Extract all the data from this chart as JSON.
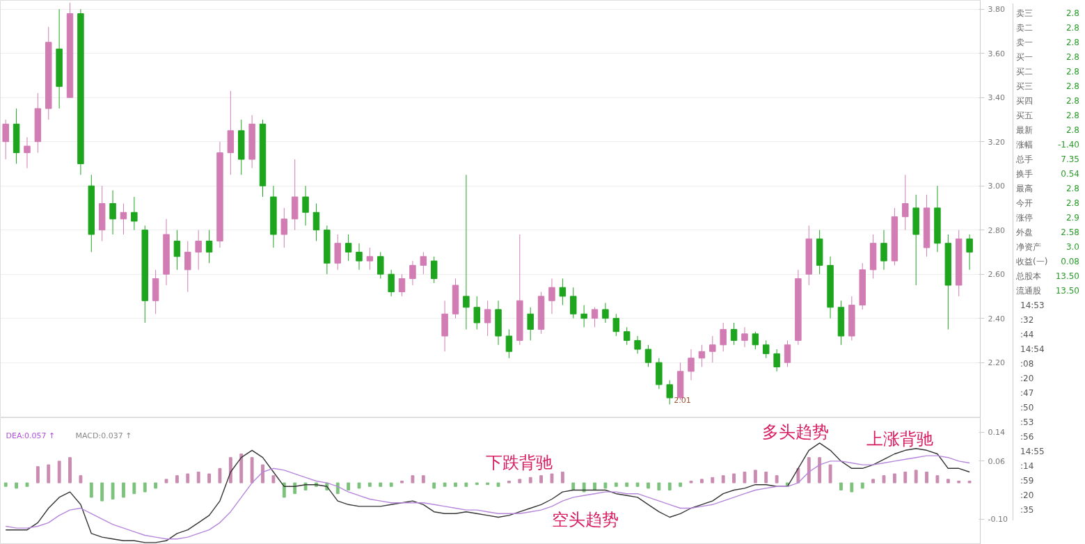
{
  "chart_data": [
    {
      "type": "candlestick",
      "categories": [
        null,
        null,
        null,
        null,
        null,
        null,
        null,
        null,
        null,
        null,
        null,
        null,
        null,
        null,
        null,
        null,
        null,
        null,
        null,
        null,
        null,
        null,
        null,
        null,
        null,
        null,
        null,
        null,
        null,
        null,
        null,
        null,
        null,
        null,
        null,
        null,
        null,
        null,
        null,
        null,
        null,
        null,
        null,
        null,
        null,
        null,
        null,
        null,
        null,
        null,
        null,
        null,
        null,
        null,
        null,
        null,
        null,
        null,
        null,
        null,
        null,
        null,
        null,
        null,
        null,
        null,
        null,
        null,
        null,
        null,
        null,
        null,
        null,
        null,
        null,
        null,
        null,
        null,
        null,
        null,
        null,
        null,
        null,
        null,
        null,
        null,
        null,
        null,
        null,
        null,
        null
      ],
      "ohlc": [
        [
          3.2,
          3.3,
          3.12,
          3.28
        ],
        [
          3.28,
          3.35,
          3.1,
          3.15
        ],
        [
          3.15,
          3.22,
          3.08,
          3.18
        ],
        [
          3.2,
          3.42,
          3.15,
          3.35
        ],
        [
          3.35,
          3.72,
          3.3,
          3.65
        ],
        [
          3.62,
          3.8,
          3.35,
          3.45
        ],
        [
          3.4,
          3.83,
          3.4,
          3.78
        ],
        [
          3.78,
          3.8,
          3.05,
          3.1
        ],
        [
          3.0,
          3.05,
          2.7,
          2.78
        ],
        [
          2.8,
          3.0,
          2.75,
          2.92
        ],
        [
          2.92,
          2.98,
          2.78,
          2.85
        ],
        [
          2.85,
          2.92,
          2.78,
          2.88
        ],
        [
          2.88,
          2.95,
          2.8,
          2.84
        ],
        [
          2.8,
          2.82,
          2.38,
          2.48
        ],
        [
          2.48,
          2.62,
          2.42,
          2.58
        ],
        [
          2.6,
          2.85,
          2.55,
          2.78
        ],
        [
          2.75,
          2.8,
          2.62,
          2.68
        ],
        [
          2.62,
          2.75,
          2.52,
          2.7
        ],
        [
          2.7,
          2.8,
          2.62,
          2.75
        ],
        [
          2.75,
          2.8,
          2.65,
          2.7
        ],
        [
          2.75,
          3.2,
          2.72,
          3.15
        ],
        [
          3.15,
          3.43,
          3.05,
          3.25
        ],
        [
          3.25,
          3.3,
          3.05,
          3.12
        ],
        [
          3.12,
          3.32,
          3.08,
          3.28
        ],
        [
          3.28,
          3.3,
          2.95,
          3.0
        ],
        [
          2.95,
          3.0,
          2.72,
          2.78
        ],
        [
          2.78,
          2.9,
          2.72,
          2.85
        ],
        [
          2.85,
          3.12,
          2.8,
          2.95
        ],
        [
          2.95,
          3.0,
          2.82,
          2.88
        ],
        [
          2.88,
          2.92,
          2.75,
          2.8
        ],
        [
          2.8,
          2.82,
          2.6,
          2.65
        ],
        [
          2.65,
          2.78,
          2.62,
          2.74
        ],
        [
          2.74,
          2.78,
          2.66,
          2.7
        ],
        [
          2.7,
          2.74,
          2.62,
          2.66
        ],
        [
          2.66,
          2.72,
          2.62,
          2.68
        ],
        [
          2.68,
          2.7,
          2.58,
          2.6
        ],
        [
          2.6,
          2.62,
          2.5,
          2.52
        ],
        [
          2.52,
          2.6,
          2.5,
          2.58
        ],
        [
          2.58,
          2.66,
          2.55,
          2.64
        ],
        [
          2.64,
          2.7,
          2.6,
          2.68
        ],
        [
          2.66,
          2.68,
          2.56,
          2.58
        ],
        [
          2.32,
          2.48,
          2.25,
          2.42
        ],
        [
          2.42,
          2.58,
          2.4,
          2.55
        ],
        [
          2.5,
          3.05,
          2.35,
          2.45
        ],
        [
          2.45,
          2.5,
          2.35,
          2.38
        ],
        [
          2.38,
          2.48,
          2.32,
          2.44
        ],
        [
          2.44,
          2.48,
          2.28,
          2.32
        ],
        [
          2.32,
          2.35,
          2.22,
          2.25
        ],
        [
          2.3,
          2.78,
          2.28,
          2.48
        ],
        [
          2.42,
          2.45,
          2.3,
          2.35
        ],
        [
          2.35,
          2.52,
          2.33,
          2.5
        ],
        [
          2.48,
          2.58,
          2.42,
          2.54
        ],
        [
          2.54,
          2.58,
          2.46,
          2.5
        ],
        [
          2.5,
          2.54,
          2.4,
          2.42
        ],
        [
          2.42,
          2.46,
          2.36,
          2.4
        ],
        [
          2.4,
          2.45,
          2.36,
          2.44
        ],
        [
          2.44,
          2.47,
          2.38,
          2.4
        ],
        [
          2.4,
          2.42,
          2.32,
          2.34
        ],
        [
          2.34,
          2.36,
          2.28,
          2.3
        ],
        [
          2.3,
          2.32,
          2.24,
          2.26
        ],
        [
          2.26,
          2.28,
          2.18,
          2.2
        ],
        [
          2.2,
          2.22,
          2.08,
          2.1
        ],
        [
          2.1,
          2.12,
          2.01,
          2.04
        ],
        [
          2.04,
          2.2,
          2.03,
          2.16
        ],
        [
          2.16,
          2.26,
          2.12,
          2.22
        ],
        [
          2.22,
          2.28,
          2.18,
          2.25
        ],
        [
          2.25,
          2.32,
          2.2,
          2.28
        ],
        [
          2.28,
          2.38,
          2.25,
          2.35
        ],
        [
          2.35,
          2.38,
          2.28,
          2.3
        ],
        [
          2.3,
          2.36,
          2.27,
          2.33
        ],
        [
          2.33,
          2.34,
          2.26,
          2.28
        ],
        [
          2.28,
          2.3,
          2.22,
          2.24
        ],
        [
          2.24,
          2.26,
          2.16,
          2.18
        ],
        [
          2.2,
          2.3,
          2.18,
          2.28
        ],
        [
          2.3,
          2.62,
          2.28,
          2.58
        ],
        [
          2.6,
          2.82,
          2.55,
          2.76
        ],
        [
          2.76,
          2.8,
          2.6,
          2.64
        ],
        [
          2.64,
          2.68,
          2.4,
          2.45
        ],
        [
          2.45,
          2.48,
          2.28,
          2.32
        ],
        [
          2.32,
          2.5,
          2.3,
          2.46
        ],
        [
          2.46,
          2.65,
          2.44,
          2.62
        ],
        [
          2.62,
          2.78,
          2.58,
          2.74
        ],
        [
          2.74,
          2.8,
          2.62,
          2.66
        ],
        [
          2.66,
          2.9,
          2.64,
          2.86
        ],
        [
          2.86,
          3.05,
          2.8,
          2.92
        ],
        [
          2.9,
          2.96,
          2.55,
          2.78
        ],
        [
          2.72,
          2.96,
          2.68,
          2.9
        ],
        [
          2.9,
          3.0,
          2.7,
          2.74
        ],
        [
          2.74,
          2.78,
          2.35,
          2.55
        ],
        [
          2.55,
          2.8,
          2.5,
          2.76
        ],
        [
          2.76,
          2.78,
          2.62,
          2.7
        ]
      ],
      "colors": [
        "#d27cb4",
        "#1ea51e",
        "#d27cb4",
        "#d27cb4",
        "#d27cb4",
        "#1ea51e",
        "#d27cb4",
        "#1ea51e",
        "#1ea51e",
        "#d27cb4",
        "#1ea51e",
        "#d27cb4",
        "#1ea51e",
        "#1ea51e",
        "#d27cb4",
        "#d27cb4",
        "#1ea51e",
        "#d27cb4",
        "#d27cb4",
        "#1ea51e",
        "#d27cb4",
        "#d27cb4",
        "#1ea51e",
        "#d27cb4",
        "#1ea51e",
        "#1ea51e",
        "#d27cb4",
        "#d27cb4",
        "#1ea51e",
        "#1ea51e",
        "#1ea51e",
        "#d27cb4",
        "#1ea51e",
        "#1ea51e",
        "#d27cb4",
        "#1ea51e",
        "#1ea51e",
        "#d27cb4",
        "#d27cb4",
        "#d27cb4",
        "#1ea51e",
        "#d27cb4",
        "#d27cb4",
        "#1ea51e",
        "#1ea51e",
        "#d27cb4",
        "#1ea51e",
        "#1ea51e",
        "#d27cb4",
        "#1ea51e",
        "#d27cb4",
        "#d27cb4",
        "#1ea51e",
        "#1ea51e",
        "#1ea51e",
        "#d27cb4",
        "#1ea51e",
        "#1ea51e",
        "#1ea51e",
        "#1ea51e",
        "#1ea51e",
        "#1ea51e",
        "#1ea51e",
        "#d27cb4",
        "#d27cb4",
        "#d27cb4",
        "#d27cb4",
        "#d27cb4",
        "#1ea51e",
        "#d27cb4",
        "#1ea51e",
        "#1ea51e",
        "#1ea51e",
        "#d27cb4",
        "#d27cb4",
        "#d27cb4",
        "#1ea51e",
        "#1ea51e",
        "#1ea51e",
        "#d27cb4",
        "#d27cb4",
        "#d27cb4",
        "#1ea51e",
        "#d27cb4",
        "#d27cb4",
        "#1ea51e",
        "#d27cb4",
        "#1ea51e",
        "#1ea51e",
        "#d27cb4",
        "#1ea51e"
      ],
      "ylim": [
        1.95,
        3.84
      ],
      "yticks": [
        {
          "value": 2.2,
          "label": "2.20"
        },
        {
          "value": 2.4,
          "label": "2.40"
        },
        {
          "value": 2.6,
          "label": "2.60"
        },
        {
          "value": 2.8,
          "label": "2.80"
        },
        {
          "value": 3.0,
          "label": "3.00"
        },
        {
          "value": 3.2,
          "label": "3.20"
        },
        {
          "value": 3.4,
          "label": "3.40"
        },
        {
          "value": 3.6,
          "label": "3.60"
        },
        {
          "value": 3.8,
          "label": "3.80"
        }
      ],
      "tick_labels": "y",
      "grid": "y",
      "annotations": [
        "2.01"
      ]
    },
    {
      "type": "bar",
      "categories": [
        null,
        null,
        null,
        null,
        null,
        null,
        null,
        null,
        null,
        null,
        null,
        null,
        null,
        null,
        null,
        null,
        null,
        null,
        null,
        null,
        null,
        null,
        null,
        null,
        null,
        null,
        null,
        null,
        null,
        null,
        null,
        null,
        null,
        null,
        null,
        null,
        null,
        null,
        null,
        null,
        null,
        null,
        null,
        null,
        null,
        null,
        null,
        null,
        null,
        null,
        null,
        null,
        null,
        null,
        null,
        null,
        null,
        null,
        null,
        null,
        null,
        null,
        null,
        null,
        null,
        null,
        null,
        null,
        null,
        null,
        null,
        null,
        null,
        null,
        null,
        null,
        null,
        null,
        null,
        null,
        null,
        null,
        null,
        null,
        null,
        null,
        null,
        null,
        null,
        null,
        null
      ],
      "series": [
        {
          "type": "bar",
          "colors": [
            "#7cc27c",
            "#7cc27c",
            "#7cc27c",
            "#c98bb0",
            "#c98bb0",
            "#c98bb0",
            "#c98bb0",
            "#c98bb0",
            "#7cc27c",
            "#7cc27c",
            "#7cc27c",
            "#7cc27c",
            "#7cc27c",
            "#7cc27c",
            "#7cc27c",
            "#c98bb0",
            "#c98bb0",
            "#c98bb0",
            "#c98bb0",
            "#c98bb0",
            "#c98bb0",
            "#c98bb0",
            "#c98bb0",
            "#c98bb0",
            "#c98bb0",
            "#c98bb0",
            "#7cc27c",
            "#7cc27c",
            "#7cc27c",
            "#7cc27c",
            "#7cc27c",
            "#7cc27c",
            "#7cc27c",
            "#7cc27c",
            "#7cc27c",
            "#7cc27c",
            "#7cc27c",
            "#c98bb0",
            "#c98bb0",
            "#c98bb0",
            "#7cc27c",
            "#7cc27c",
            "#7cc27c",
            "#7cc27c",
            "#7cc27c",
            "#7cc27c",
            "#7cc27c",
            "#c98bb0",
            "#c98bb0",
            "#c98bb0",
            "#c98bb0",
            "#c98bb0",
            "#c98bb0",
            "#7cc27c",
            "#7cc27c",
            "#7cc27c",
            "#7cc27c",
            "#7cc27c",
            "#7cc27c",
            "#7cc27c",
            "#7cc27c",
            "#7cc27c",
            "#7cc27c",
            "#7cc27c",
            "#c98bb0",
            "#c98bb0",
            "#c98bb0",
            "#c98bb0",
            "#c98bb0",
            "#c98bb0",
            "#c98bb0",
            "#c98bb0",
            "#c98bb0",
            "#7cc27c",
            "#c98bb0",
            "#c98bb0",
            "#c98bb0",
            "#c98bb0",
            "#7cc27c",
            "#7cc27c",
            "#7cc27c",
            "#c98bb0",
            "#c98bb0",
            "#c98bb0",
            "#c98bb0",
            "#c98bb0",
            "#c98bb0",
            "#c98bb0",
            "#c98bb0",
            "#c98bb0",
            "#c98bb0"
          ],
          "values": [
            -0.01,
            -0.015,
            -0.01,
            0.045,
            0.05,
            0.06,
            0.07,
            0.02,
            -0.04,
            -0.05,
            -0.045,
            -0.04,
            -0.03,
            -0.025,
            -0.015,
            0.01,
            0.02,
            0.025,
            0.03,
            0.025,
            0.04,
            0.07,
            0.08,
            0.07,
            0.05,
            0.02,
            -0.04,
            -0.03,
            -0.02,
            -0.01,
            -0.02,
            -0.03,
            -0.02,
            -0.015,
            -0.01,
            -0.01,
            -0.01,
            0.005,
            0.02,
            0.02,
            -0.015,
            -0.01,
            -0.01,
            -0.01,
            -0.005,
            -0.005,
            -0.01,
            0.005,
            0.01,
            0.015,
            0.02,
            0.025,
            0.03,
            -0.02,
            -0.025,
            -0.02,
            -0.015,
            -0.01,
            -0.01,
            -0.01,
            -0.015,
            -0.02,
            -0.02,
            -0.01,
            0.005,
            0.01,
            0.015,
            0.02,
            0.025,
            0.03,
            0.035,
            0.03,
            0.02,
            -0.01,
            0.04,
            0.07,
            0.07,
            0.05,
            -0.02,
            -0.025,
            -0.015,
            0.01,
            0.02,
            0.025,
            0.03,
            0.035,
            0.03,
            0.02,
            0.01,
            0.005,
            0.005
          ]
        },
        {
          "type": "line",
          "color": "#333333",
          "values": [
            -0.13,
            -0.13,
            -0.13,
            -0.11,
            -0.07,
            -0.04,
            -0.025,
            -0.06,
            -0.14,
            -0.15,
            -0.155,
            -0.16,
            -0.16,
            -0.165,
            -0.165,
            -0.16,
            -0.14,
            -0.13,
            -0.11,
            -0.09,
            -0.05,
            0.03,
            0.07,
            0.09,
            0.07,
            0.03,
            -0.01,
            -0.01,
            -0.005,
            -0.005,
            -0.01,
            -0.05,
            -0.06,
            -0.065,
            -0.065,
            -0.065,
            -0.06,
            -0.055,
            -0.05,
            -0.06,
            -0.08,
            -0.085,
            -0.085,
            -0.08,
            -0.085,
            -0.09,
            -0.095,
            -0.09,
            -0.08,
            -0.07,
            -0.06,
            -0.045,
            -0.025,
            -0.02,
            -0.02,
            -0.02,
            -0.02,
            -0.03,
            -0.035,
            -0.04,
            -0.06,
            -0.08,
            -0.095,
            -0.085,
            -0.07,
            -0.06,
            -0.05,
            -0.03,
            -0.02,
            -0.015,
            -0.005,
            -0.005,
            -0.01,
            -0.01,
            0.04,
            0.09,
            0.11,
            0.09,
            0.06,
            0.04,
            0.04,
            0.05,
            0.065,
            0.08,
            0.09,
            0.095,
            0.09,
            0.08,
            0.04,
            0.04,
            0.03
          ]
        },
        {
          "type": "line",
          "color": "#b585dc",
          "values": [
            -0.12,
            -0.125,
            -0.125,
            -0.12,
            -0.11,
            -0.09,
            -0.075,
            -0.07,
            -0.085,
            -0.1,
            -0.115,
            -0.125,
            -0.135,
            -0.145,
            -0.15,
            -0.155,
            -0.155,
            -0.15,
            -0.14,
            -0.13,
            -0.11,
            -0.08,
            -0.04,
            0,
            0.03,
            0.04,
            0.035,
            0.025,
            0.015,
            0.005,
            0,
            -0.01,
            -0.025,
            -0.035,
            -0.045,
            -0.05,
            -0.055,
            -0.055,
            -0.055,
            -0.055,
            -0.06,
            -0.065,
            -0.07,
            -0.075,
            -0.075,
            -0.08,
            -0.085,
            -0.085,
            -0.085,
            -0.08,
            -0.075,
            -0.065,
            -0.05,
            -0.04,
            -0.035,
            -0.03,
            -0.025,
            -0.025,
            -0.03,
            -0.03,
            -0.04,
            -0.05,
            -0.06,
            -0.07,
            -0.07,
            -0.065,
            -0.06,
            -0.05,
            -0.04,
            -0.03,
            -0.02,
            -0.015,
            -0.01,
            -0.01,
            0,
            0.03,
            0.05,
            0.06,
            0.06,
            0.055,
            0.05,
            0.05,
            0.055,
            0.06,
            0.065,
            0.07,
            0.075,
            0.075,
            0.07,
            0.06,
            0.055
          ]
        }
      ],
      "ylim": [
        -0.17,
        0.18
      ],
      "yticks": [
        {
          "value": 0.14,
          "label": "0.14"
        },
        {
          "value": 0.06,
          "label": "0.06"
        },
        {
          "value": -0.1,
          "label": "-0.10"
        }
      ],
      "tick_labels": "y",
      "annotations": [
        "DEA:0.057 ↑",
        "MACD:0.037 ↑",
        "下跌背驰",
        "空头趋势",
        "多头趋势",
        "上涨背驰"
      ]
    },
    {
      "type": "other",
      "categories": [
        "卖三",
        "卖二",
        "卖一",
        "买一",
        "买二",
        "买三",
        "买四",
        "买五",
        "最新",
        "涨幅",
        "总手",
        "换手",
        "最高",
        "今开",
        "涨停",
        "外盘",
        "净资产",
        "收益(一)",
        "总股本",
        "流通股"
      ],
      "value_labels": [
        "2.8",
        "2.8",
        "2.8",
        "2.8",
        "2.8",
        "2.8",
        "2.8",
        "2.8",
        "2.8",
        "-1.40",
        "7.35",
        "0.54",
        "2.8",
        "2.8",
        "2.9",
        "2.58",
        "3.0",
        "0.08",
        "13.50",
        "13.50"
      ],
      "annotations": [
        "14:53",
        ":32",
        ":44",
        "14:54",
        ":08",
        ":20",
        ":47",
        ":50",
        ":53",
        ":56",
        "14:55",
        ":14",
        ":59",
        ":20",
        ":35"
      ]
    }
  ]
}
